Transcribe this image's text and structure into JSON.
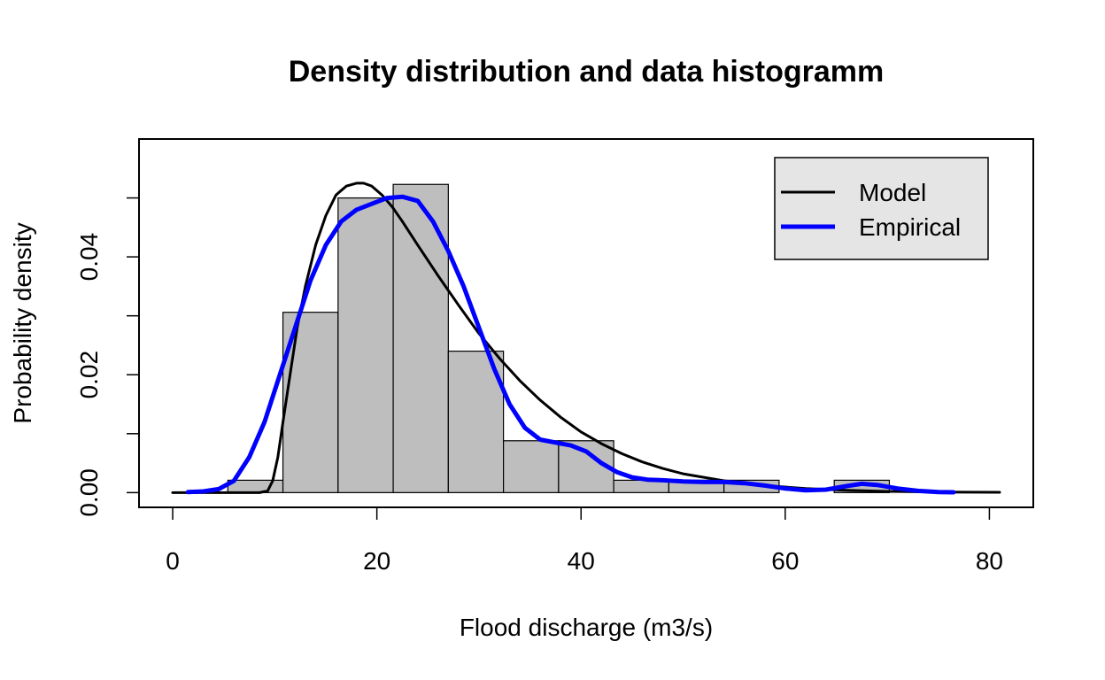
{
  "chart_data": {
    "type": "histogram",
    "title": "Density distribution and data histogramm",
    "xlabel": "Flood discharge (m3/s)",
    "ylabel": "Probability density",
    "xlim": [
      -3.3,
      84.3
    ],
    "ylim": [
      -0.0025,
      0.06
    ],
    "x_ticks": [
      0,
      20,
      40,
      60,
      80
    ],
    "x_tick_labels": [
      "0",
      "20",
      "40",
      "60",
      "80"
    ],
    "y_ticks": [
      0,
      0.01,
      0.02,
      0.03,
      0.04,
      0.05
    ],
    "y_tick_labels": [
      "0.00",
      "",
      "0.02",
      "",
      "0.04",
      ""
    ],
    "grid": false,
    "histogram": {
      "fill_color": "#bebebe",
      "bins": [
        {
          "x0": 5.4,
          "x1": 10.8,
          "density": 0.0021
        },
        {
          "x0": 10.8,
          "x1": 16.2,
          "density": 0.0306
        },
        {
          "x0": 16.2,
          "x1": 21.6,
          "density": 0.05
        },
        {
          "x0": 21.6,
          "x1": 27.0,
          "density": 0.0523
        },
        {
          "x0": 27.0,
          "x1": 32.4,
          "density": 0.024
        },
        {
          "x0": 32.4,
          "x1": 37.8,
          "density": 0.0088
        },
        {
          "x0": 37.8,
          "x1": 43.2,
          "density": 0.0088
        },
        {
          "x0": 43.2,
          "x1": 48.6,
          "density": 0.0021
        },
        {
          "x0": 48.6,
          "x1": 54.0,
          "density": 0.0021
        },
        {
          "x0": 54.0,
          "x1": 59.4,
          "density": 0.0021
        },
        {
          "x0": 59.4,
          "x1": 64.8,
          "density": 0.0
        },
        {
          "x0": 64.8,
          "x1": 70.2,
          "density": 0.0021
        }
      ]
    },
    "series": [
      {
        "name": "Model",
        "color": "#000000",
        "x": [
          0,
          8.5,
          9.3,
          9.8,
          10.3,
          10.8,
          11.5,
          12.2,
          13.0,
          14.0,
          15.0,
          16.0,
          17.0,
          18.0,
          18.7,
          19.5,
          20.5,
          21.5,
          22.5,
          24.0,
          26.0,
          28.0,
          30.0,
          32.0,
          34.0,
          36.0,
          38.0,
          40.0,
          42.0,
          44.0,
          46.0,
          48.0,
          50.0,
          54.0,
          58.0,
          62.0,
          66.0,
          70.0,
          75.0,
          81.0
        ],
        "y": [
          0,
          0,
          0.0003,
          0.002,
          0.006,
          0.012,
          0.02,
          0.028,
          0.035,
          0.042,
          0.047,
          0.0505,
          0.052,
          0.0525,
          0.0525,
          0.052,
          0.0505,
          0.0485,
          0.046,
          0.042,
          0.0368,
          0.0318,
          0.027,
          0.0228,
          0.019,
          0.0157,
          0.0128,
          0.0103,
          0.0083,
          0.0066,
          0.0052,
          0.0041,
          0.0032,
          0.002,
          0.0012,
          0.0007,
          0.0004,
          0.0002,
          0.0001,
          5e-05
        ]
      },
      {
        "name": "Empirical",
        "color": "#0000ff",
        "x": [
          1.5,
          3.0,
          4.5,
          6.0,
          7.5,
          9.0,
          10.5,
          12.0,
          13.5,
          15.0,
          16.5,
          18.0,
          19.5,
          21.0,
          22.5,
          24.0,
          25.5,
          27.0,
          28.5,
          30.0,
          31.5,
          33.0,
          34.5,
          36.0,
          37.5,
          39.0,
          40.5,
          42.0,
          43.5,
          45.0,
          46.5,
          48.0,
          50.0,
          52.0,
          54.0,
          56.0,
          58.0,
          60.0,
          62.0,
          64.0,
          66.0,
          67.5,
          69.0,
          71.0,
          73.0,
          75.0,
          76.5
        ],
        "y": [
          0.0001,
          0.0002,
          0.0006,
          0.002,
          0.006,
          0.012,
          0.02,
          0.028,
          0.036,
          0.042,
          0.046,
          0.048,
          0.049,
          0.05,
          0.0502,
          0.0495,
          0.046,
          0.041,
          0.035,
          0.028,
          0.021,
          0.015,
          0.011,
          0.009,
          0.0085,
          0.008,
          0.007,
          0.005,
          0.0035,
          0.0026,
          0.0022,
          0.0021,
          0.0019,
          0.0018,
          0.0018,
          0.0016,
          0.0012,
          0.0007,
          0.0004,
          0.0005,
          0.0011,
          0.0015,
          0.0013,
          0.0007,
          0.0003,
          0.0001,
          5e-05
        ]
      }
    ],
    "legend": {
      "position": "top-right",
      "background": "#e5e5e5",
      "entries": [
        "Model",
        "Empirical"
      ]
    }
  }
}
